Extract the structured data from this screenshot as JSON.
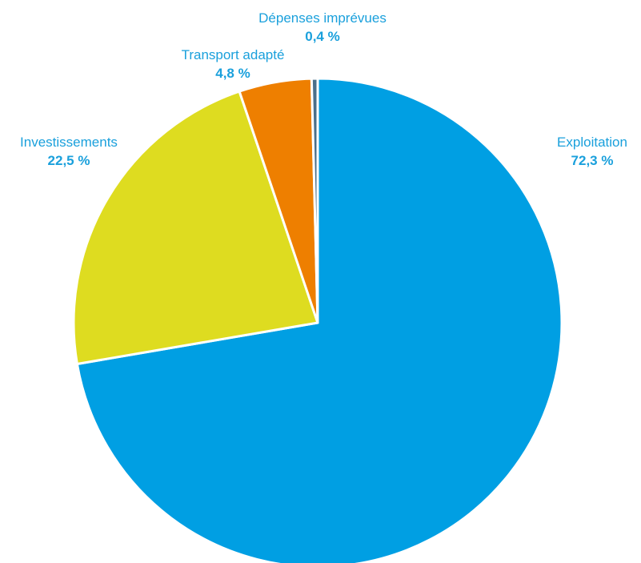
{
  "chart_data": {
    "type": "pie",
    "title": "",
    "label_color": "#1aa0dc",
    "slices": [
      {
        "label": "Exploitation",
        "display_value": "72,3 %",
        "value": 72.3,
        "color": "#009fe3"
      },
      {
        "label": "Investissements",
        "display_value": "22,5 %",
        "value": 22.5,
        "color": "#dedc20"
      },
      {
        "label": "Transport adapté",
        "display_value": "4,8 %",
        "value": 4.8,
        "color": "#ee7f00"
      },
      {
        "label": "Dépenses imprévues",
        "display_value": "0,4 %",
        "value": 0.4,
        "color": "#4a6f8a"
      }
    ]
  }
}
